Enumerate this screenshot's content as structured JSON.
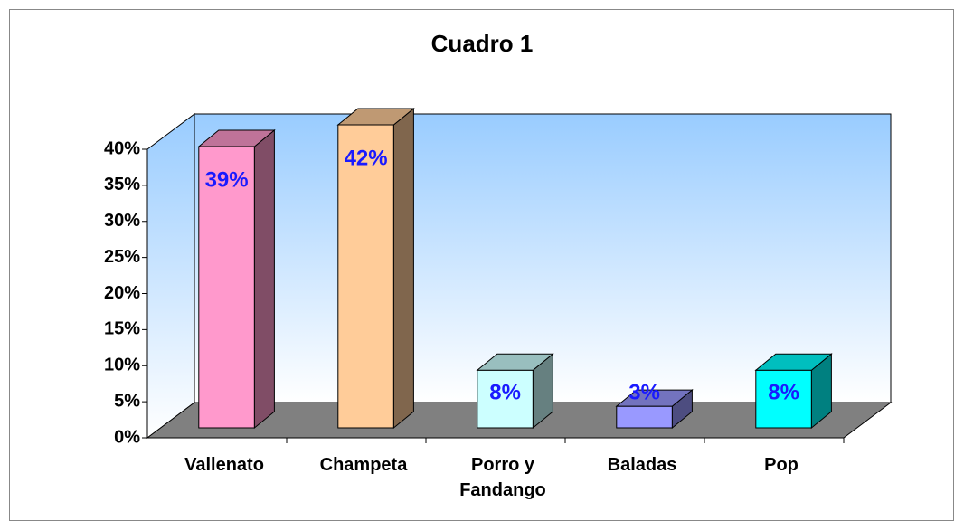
{
  "chart_data": {
    "type": "bar3d",
    "title": "Cuadro 1",
    "categories": [
      "Vallenato",
      "Champeta",
      "Porro y Fandango",
      "Baladas",
      "Pop"
    ],
    "values": [
      39,
      42,
      8,
      3,
      8
    ],
    "value_labels": [
      "39%",
      "42%",
      "8%",
      "3%",
      "8%"
    ],
    "colors": [
      "#ff99cc",
      "#ffcc99",
      "#ccffff",
      "#9999ff",
      "#00ffff"
    ],
    "ylim": [
      0,
      40
    ],
    "yticks": [
      {
        "value": 0,
        "label": "0%"
      },
      {
        "value": 5,
        "label": "5%"
      },
      {
        "value": 10,
        "label": "10%"
      },
      {
        "value": 15,
        "label": "15%"
      },
      {
        "value": 20,
        "label": "20%"
      },
      {
        "value": 25,
        "label": "25%"
      },
      {
        "value": 30,
        "label": "30%"
      },
      {
        "value": 35,
        "label": "35%"
      },
      {
        "value": 40,
        "label": "40%"
      }
    ]
  }
}
